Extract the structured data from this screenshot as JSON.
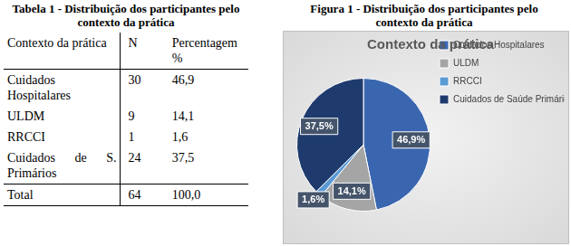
{
  "table": {
    "title": "Tabela 1 - Distribuição dos participantes pelo contexto da prática",
    "header": [
      "Contexto da prática",
      "N",
      "Percentagem %"
    ],
    "rows": [
      [
        "Cuidados Hospitalares",
        "30",
        "46,9"
      ],
      [
        "ULDM",
        "9",
        "14,1"
      ],
      [
        "RRCCI",
        "1",
        "1,6"
      ],
      [
        "Cuidados de S. Primários",
        "24",
        "37,5"
      ]
    ],
    "total": [
      "Total",
      "64",
      "100,0"
    ]
  },
  "figure_caption": "Figura 1 - Distribuição dos participantes pelo contexto da prática",
  "chart_data": {
    "type": "pie",
    "title": "Contexto da prática",
    "categories": [
      "Cuidados Hospitalares",
      "ULDM",
      "RRCCI",
      "Cuidados de Saúde Primários"
    ],
    "values": [
      46.9,
      14.1,
      1.6,
      37.5
    ],
    "value_labels": [
      "46,9%",
      "14,1%",
      "1,6%",
      "37,5%"
    ],
    "colors": [
      "#3a66b0",
      "#a5a5a5",
      "#5b9bd5",
      "#1f3b6e"
    ],
    "legend": "right",
    "data_labels": true
  }
}
